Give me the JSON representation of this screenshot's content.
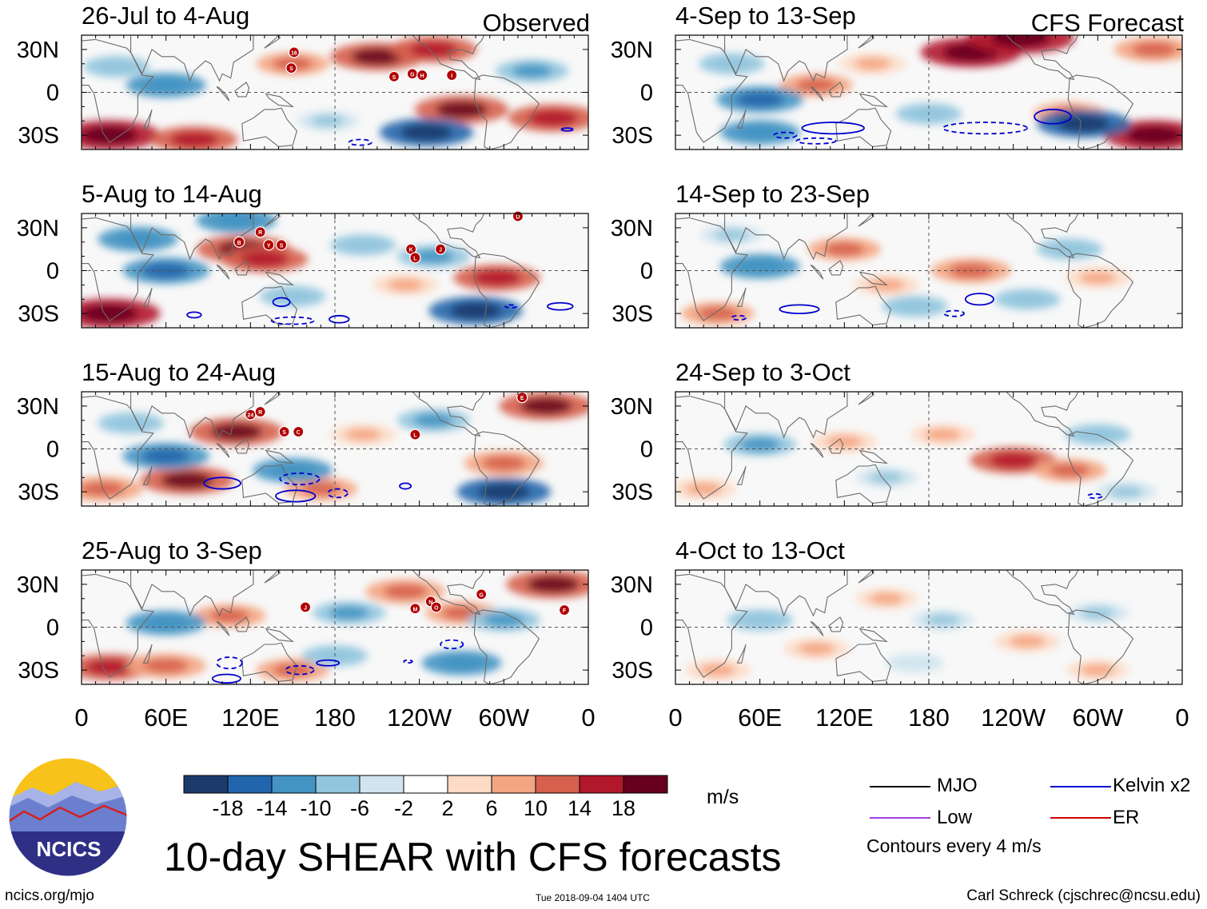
{
  "title": "10-day SHEAR with CFS forecasts",
  "logo": {
    "text": "NCICS"
  },
  "footer": {
    "url": "ncics.org/mjo",
    "timestamp": "Tue 2018-09-04 1404 UTC",
    "author": "Carl Schreck (cjschrec@ncsu.edu)"
  },
  "colors": {
    "background": "#ffffff",
    "zero_line": "#555555",
    "coastline": "#6b6b6b",
    "mjo": "#000000",
    "low": "#a040e0",
    "kelvin": "#0000d0",
    "er": "#d00000",
    "storm_marker": "#b00000"
  },
  "colorbar": {
    "units": "m/s",
    "tick_labels": [
      "-18",
      "-14",
      "-10",
      "-6",
      "-2",
      "2",
      "6",
      "10",
      "14",
      "18"
    ],
    "colors": [
      "#1b3a6b",
      "#2166ac",
      "#4393c3",
      "#92c5de",
      "#d1e5f0",
      "#ffffff",
      "#fddbc7",
      "#f4a582",
      "#d6604d",
      "#b2182b",
      "#67001f"
    ]
  },
  "legend": {
    "items": [
      {
        "label": "MJO",
        "color": "#000000"
      },
      {
        "label": "Kelvin x2",
        "color": "#0000d0"
      },
      {
        "label": "Low",
        "color": "#a040e0"
      },
      {
        "label": "ER",
        "color": "#d00000"
      }
    ],
    "note": "Contours every 4 m/s"
  },
  "chart_data": {
    "type": "heatmap",
    "variable": "10-day SHEAR anomaly",
    "units": "m/s",
    "x_tick_labels": [
      "0",
      "60E",
      "120E",
      "180",
      "120W",
      "60W",
      "0"
    ],
    "y_tick_labels": [
      "30N",
      "0",
      "30S"
    ],
    "xlim": [
      0,
      360
    ],
    "ylim": [
      -40,
      40
    ],
    "panels": [
      {
        "column": "Observed",
        "header": "Observed",
        "period": "26-Jul to 4-Aug",
        "blobs": [
          {
            "lon": 20,
            "lat": -30,
            "value": 16
          },
          {
            "lon": 80,
            "lat": -33,
            "value": 12
          },
          {
            "lon": 150,
            "lat": 20,
            "value": 8
          },
          {
            "lon": 210,
            "lat": 25,
            "value": 14
          },
          {
            "lon": 250,
            "lat": 30,
            "value": 12
          },
          {
            "lon": 270,
            "lat": -12,
            "value": 14
          },
          {
            "lon": 335,
            "lat": -18,
            "value": 13
          },
          {
            "lon": 245,
            "lat": -28,
            "value": -14
          },
          {
            "lon": 60,
            "lat": 5,
            "value": -10
          },
          {
            "lon": 320,
            "lat": 15,
            "value": -8
          },
          {
            "lon": 25,
            "lat": 18,
            "value": -6
          },
          {
            "lon": 175,
            "lat": -20,
            "value": -5
          }
        ],
        "kelvin": [
          {
            "lon": 198,
            "lat": -35,
            "rx": 8,
            "ry": 2,
            "dashed": true
          },
          {
            "lon": 345,
            "lat": -26,
            "rx": 4,
            "ry": 1,
            "dashed": false
          }
        ],
        "storms": [
          {
            "label": "16",
            "lon": 151,
            "lat": 28
          },
          {
            "label": "S",
            "lon": 149,
            "lat": 17
          },
          {
            "label": "S",
            "lon": 222,
            "lat": 11
          },
          {
            "label": "G",
            "lon": 235,
            "lat": 13
          },
          {
            "label": "H",
            "lon": 242,
            "lat": 12
          },
          {
            "label": "I",
            "lon": 263,
            "lat": 12
          }
        ]
      },
      {
        "column": "Observed",
        "header": "",
        "period": "5-Aug to 14-Aug",
        "blobs": [
          {
            "lon": 20,
            "lat": -30,
            "value": 16
          },
          {
            "lon": 115,
            "lat": 15,
            "value": 14
          },
          {
            "lon": 130,
            "lat": 8,
            "value": 12
          },
          {
            "lon": 295,
            "lat": -5,
            "value": 12
          },
          {
            "lon": 230,
            "lat": -10,
            "value": 6
          },
          {
            "lon": 280,
            "lat": -28,
            "value": -14
          },
          {
            "lon": 60,
            "lat": 0,
            "value": -12
          },
          {
            "lon": 40,
            "lat": 22,
            "value": -10
          },
          {
            "lon": 200,
            "lat": 18,
            "value": -6
          },
          {
            "lon": 250,
            "lat": 10,
            "value": -8
          },
          {
            "lon": 150,
            "lat": -18,
            "value": -6
          },
          {
            "lon": 110,
            "lat": 35,
            "value": -10
          }
        ],
        "kelvin": [
          {
            "lon": 142,
            "lat": -22,
            "rx": 6,
            "ry": 3,
            "dashed": false
          },
          {
            "lon": 80,
            "lat": -31,
            "rx": 5,
            "ry": 2,
            "dashed": false
          },
          {
            "lon": 183,
            "lat": -34,
            "rx": 7,
            "ry": 2.5,
            "dashed": false
          },
          {
            "lon": 150,
            "lat": -35,
            "rx": 15,
            "ry": 2.5,
            "dashed": true
          },
          {
            "lon": 340,
            "lat": -25,
            "rx": 9,
            "ry": 2.5,
            "dashed": false
          },
          {
            "lon": 305,
            "lat": -25,
            "rx": 4,
            "ry": 1,
            "dashed": true
          }
        ],
        "storms": [
          {
            "label": "D",
            "lon": 310,
            "lat": 38
          },
          {
            "label": "B",
            "lon": 112,
            "lat": 20
          },
          {
            "label": "R",
            "lon": 127,
            "lat": 27
          },
          {
            "label": "Y",
            "lon": 133,
            "lat": 18
          },
          {
            "label": "S",
            "lon": 142,
            "lat": 18
          },
          {
            "label": "K",
            "lon": 234,
            "lat": 15
          },
          {
            "label": "J",
            "lon": 255,
            "lat": 15
          },
          {
            "label": "L",
            "lon": 237,
            "lat": 9
          }
        ]
      },
      {
        "column": "Observed",
        "header": "",
        "period": "15-Aug to 24-Aug",
        "blobs": [
          {
            "lon": 110,
            "lat": 12,
            "value": 14
          },
          {
            "lon": 75,
            "lat": -22,
            "value": 14
          },
          {
            "lon": 15,
            "lat": -28,
            "value": 10
          },
          {
            "lon": 330,
            "lat": 30,
            "value": 14
          },
          {
            "lon": 300,
            "lat": -10,
            "value": 10
          },
          {
            "lon": 200,
            "lat": 10,
            "value": 6
          },
          {
            "lon": 170,
            "lat": -28,
            "value": 8
          },
          {
            "lon": 60,
            "lat": -5,
            "value": -12
          },
          {
            "lon": 150,
            "lat": -15,
            "value": -10
          },
          {
            "lon": 300,
            "lat": -30,
            "value": -14
          },
          {
            "lon": 250,
            "lat": 20,
            "value": -8
          },
          {
            "lon": 35,
            "lat": 18,
            "value": -6
          }
        ],
        "kelvin": [
          {
            "lon": 100,
            "lat": -24,
            "rx": 13,
            "ry": 4,
            "dashed": false
          },
          {
            "lon": 152,
            "lat": -33,
            "rx": 14,
            "ry": 4,
            "dashed": false
          },
          {
            "lon": 155,
            "lat": -21,
            "rx": 14,
            "ry": 4,
            "dashed": true
          },
          {
            "lon": 182,
            "lat": -31,
            "rx": 7,
            "ry": 3,
            "dashed": true
          },
          {
            "lon": 230,
            "lat": -26,
            "rx": 4,
            "ry": 2,
            "dashed": false
          }
        ],
        "storms": [
          {
            "label": "E",
            "lon": 313,
            "lat": 36
          },
          {
            "label": "24",
            "lon": 120,
            "lat": 24
          },
          {
            "label": "R",
            "lon": 127,
            "lat": 26
          },
          {
            "label": "S",
            "lon": 144,
            "lat": 12
          },
          {
            "label": "C",
            "lon": 154,
            "lat": 12
          },
          {
            "label": "L",
            "lon": 237,
            "lat": 10
          }
        ]
      },
      {
        "column": "Observed",
        "header": "",
        "period": "25-Aug to 3-Sep",
        "blobs": [
          {
            "lon": 20,
            "lat": -28,
            "value": 12
          },
          {
            "lon": 105,
            "lat": 8,
            "value": 8
          },
          {
            "lon": 60,
            "lat": -27,
            "value": 10
          },
          {
            "lon": 150,
            "lat": -30,
            "value": 8
          },
          {
            "lon": 335,
            "lat": 30,
            "value": 14
          },
          {
            "lon": 230,
            "lat": 25,
            "value": 10
          },
          {
            "lon": 270,
            "lat": 10,
            "value": 8
          },
          {
            "lon": 270,
            "lat": -25,
            "value": -10
          },
          {
            "lon": 60,
            "lat": 3,
            "value": -10
          },
          {
            "lon": 190,
            "lat": 10,
            "value": -8
          },
          {
            "lon": 300,
            "lat": 5,
            "value": -8
          },
          {
            "lon": 180,
            "lat": -20,
            "value": -6
          }
        ],
        "kelvin": [
          {
            "lon": 105,
            "lat": -25,
            "rx": 9,
            "ry": 4,
            "dashed": true
          },
          {
            "lon": 155,
            "lat": -30,
            "rx": 10,
            "ry": 3,
            "dashed": true
          },
          {
            "lon": 103,
            "lat": -36,
            "rx": 10,
            "ry": 3,
            "dashed": false
          },
          {
            "lon": 175,
            "lat": -25,
            "rx": 8,
            "ry": 2,
            "dashed": false
          },
          {
            "lon": 263,
            "lat": -12,
            "rx": 8,
            "ry": 3,
            "dashed": true
          },
          {
            "lon": 232,
            "lat": -24,
            "rx": 3,
            "ry": 1,
            "dashed": true
          }
        ],
        "storms": [
          {
            "label": "J",
            "lon": 159,
            "lat": 14
          },
          {
            "label": "M",
            "lon": 237,
            "lat": 13
          },
          {
            "label": "N",
            "lon": 248,
            "lat": 18
          },
          {
            "label": "O",
            "lon": 252,
            "lat": 14
          },
          {
            "label": "G",
            "lon": 284,
            "lat": 23
          },
          {
            "label": "F",
            "lon": 343,
            "lat": 12
          }
        ]
      },
      {
        "column": "CFS Forecast",
        "header": "CFS Forecast",
        "period": "4-Sep to 13-Sep",
        "blobs": [
          {
            "lon": 210,
            "lat": 28,
            "value": 16
          },
          {
            "lon": 245,
            "lat": 38,
            "value": 18
          },
          {
            "lon": 340,
            "lat": 30,
            "value": 10
          },
          {
            "lon": 340,
            "lat": -30,
            "value": 16
          },
          {
            "lon": 280,
            "lat": -15,
            "value": 8
          },
          {
            "lon": 100,
            "lat": 5,
            "value": 8
          },
          {
            "lon": 140,
            "lat": 20,
            "value": 6
          },
          {
            "lon": 60,
            "lat": -5,
            "value": -12
          },
          {
            "lon": 60,
            "lat": -28,
            "value": -10
          },
          {
            "lon": 290,
            "lat": -22,
            "value": -14
          },
          {
            "lon": 180,
            "lat": -15,
            "value": -6
          },
          {
            "lon": 40,
            "lat": 20,
            "value": -6
          }
        ],
        "kelvin": [
          {
            "lon": 112,
            "lat": -25,
            "rx": 22,
            "ry": 4,
            "dashed": false
          },
          {
            "lon": 220,
            "lat": -25,
            "rx": 30,
            "ry": 4,
            "dashed": true
          },
          {
            "lon": 268,
            "lat": -17,
            "rx": 13,
            "ry": 5,
            "dashed": false
          },
          {
            "lon": 78,
            "lat": -30,
            "rx": 8,
            "ry": 2,
            "dashed": true
          },
          {
            "lon": 100,
            "lat": -34,
            "rx": 14,
            "ry": 2,
            "dashed": true
          }
        ],
        "storms": []
      },
      {
        "column": "CFS Forecast",
        "header": "",
        "period": "14-Sep to 23-Sep",
        "blobs": [
          {
            "lon": 210,
            "lat": 0,
            "value": 10
          },
          {
            "lon": 120,
            "lat": 15,
            "value": 8
          },
          {
            "lon": 150,
            "lat": -10,
            "value": 6
          },
          {
            "lon": 300,
            "lat": -5,
            "value": 6
          },
          {
            "lon": 30,
            "lat": -30,
            "value": 8
          },
          {
            "lon": 60,
            "lat": 3,
            "value": -10
          },
          {
            "lon": 170,
            "lat": -25,
            "value": -6
          },
          {
            "lon": 280,
            "lat": 15,
            "value": -6
          },
          {
            "lon": 250,
            "lat": -20,
            "value": -6
          },
          {
            "lon": 40,
            "lat": 25,
            "value": -5
          }
        ],
        "kelvin": [
          {
            "lon": 88,
            "lat": -27,
            "rx": 14,
            "ry": 3,
            "dashed": false
          },
          {
            "lon": 216,
            "lat": -20,
            "rx": 10,
            "ry": 4,
            "dashed": false
          },
          {
            "lon": 45,
            "lat": -33,
            "rx": 5,
            "ry": 1.5,
            "dashed": true
          },
          {
            "lon": 198,
            "lat": -30,
            "rx": 7,
            "ry": 2,
            "dashed": true
          }
        ],
        "storms": []
      },
      {
        "column": "CFS Forecast",
        "header": "",
        "period": "24-Sep to 3-Oct",
        "blobs": [
          {
            "lon": 240,
            "lat": -8,
            "value": 12
          },
          {
            "lon": 280,
            "lat": -15,
            "value": 8
          },
          {
            "lon": 120,
            "lat": 5,
            "value": 6
          },
          {
            "lon": 20,
            "lat": -28,
            "value": 6
          },
          {
            "lon": 190,
            "lat": 10,
            "value": 6
          },
          {
            "lon": 60,
            "lat": 3,
            "value": -8
          },
          {
            "lon": 300,
            "lat": 10,
            "value": -6
          },
          {
            "lon": 150,
            "lat": -20,
            "value": -5
          },
          {
            "lon": 320,
            "lat": -30,
            "value": -5
          }
        ],
        "kelvin": [
          {
            "lon": 298,
            "lat": -33,
            "rx": 5,
            "ry": 1.5,
            "dashed": true
          }
        ],
        "storms": []
      },
      {
        "column": "CFS Forecast",
        "header": "",
        "period": "4-Oct to 13-Oct",
        "blobs": [
          {
            "lon": 100,
            "lat": -15,
            "value": 6
          },
          {
            "lon": 250,
            "lat": -10,
            "value": 6
          },
          {
            "lon": 150,
            "lat": 20,
            "value": 5
          },
          {
            "lon": 30,
            "lat": -30,
            "value": 6
          },
          {
            "lon": 300,
            "lat": -30,
            "value": 5
          },
          {
            "lon": 60,
            "lat": 5,
            "value": -6
          },
          {
            "lon": 190,
            "lat": 5,
            "value": -5
          },
          {
            "lon": 300,
            "lat": 10,
            "value": -5
          },
          {
            "lon": 170,
            "lat": -25,
            "value": -4
          }
        ],
        "kelvin": [],
        "storms": []
      }
    ]
  }
}
